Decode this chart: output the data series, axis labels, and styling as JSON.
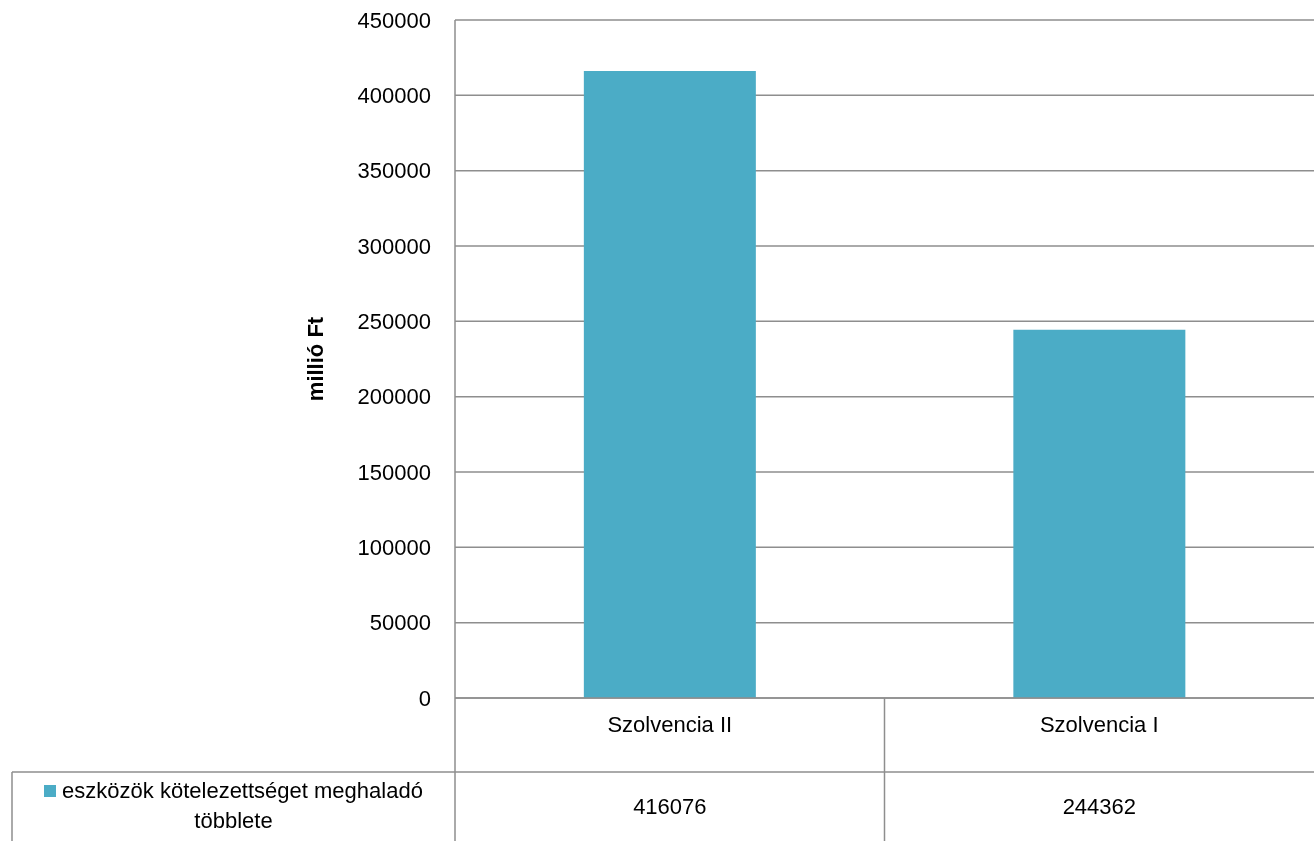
{
  "chart_data": {
    "type": "bar",
    "categories": [
      "Szolvencia II",
      "Szolvencia I"
    ],
    "series": [
      {
        "name": "eszközök kötelezettséget meghaladó többlete",
        "color": "#4bacc6",
        "values": [
          416076,
          244362
        ]
      }
    ],
    "ylabel": "millió Ft",
    "ylim": [
      0,
      450000
    ],
    "yticks": [
      0,
      50000,
      100000,
      150000,
      200000,
      250000,
      300000,
      350000,
      400000,
      450000
    ],
    "grid": "y",
    "legend": "bottom left",
    "data_labels": true
  }
}
